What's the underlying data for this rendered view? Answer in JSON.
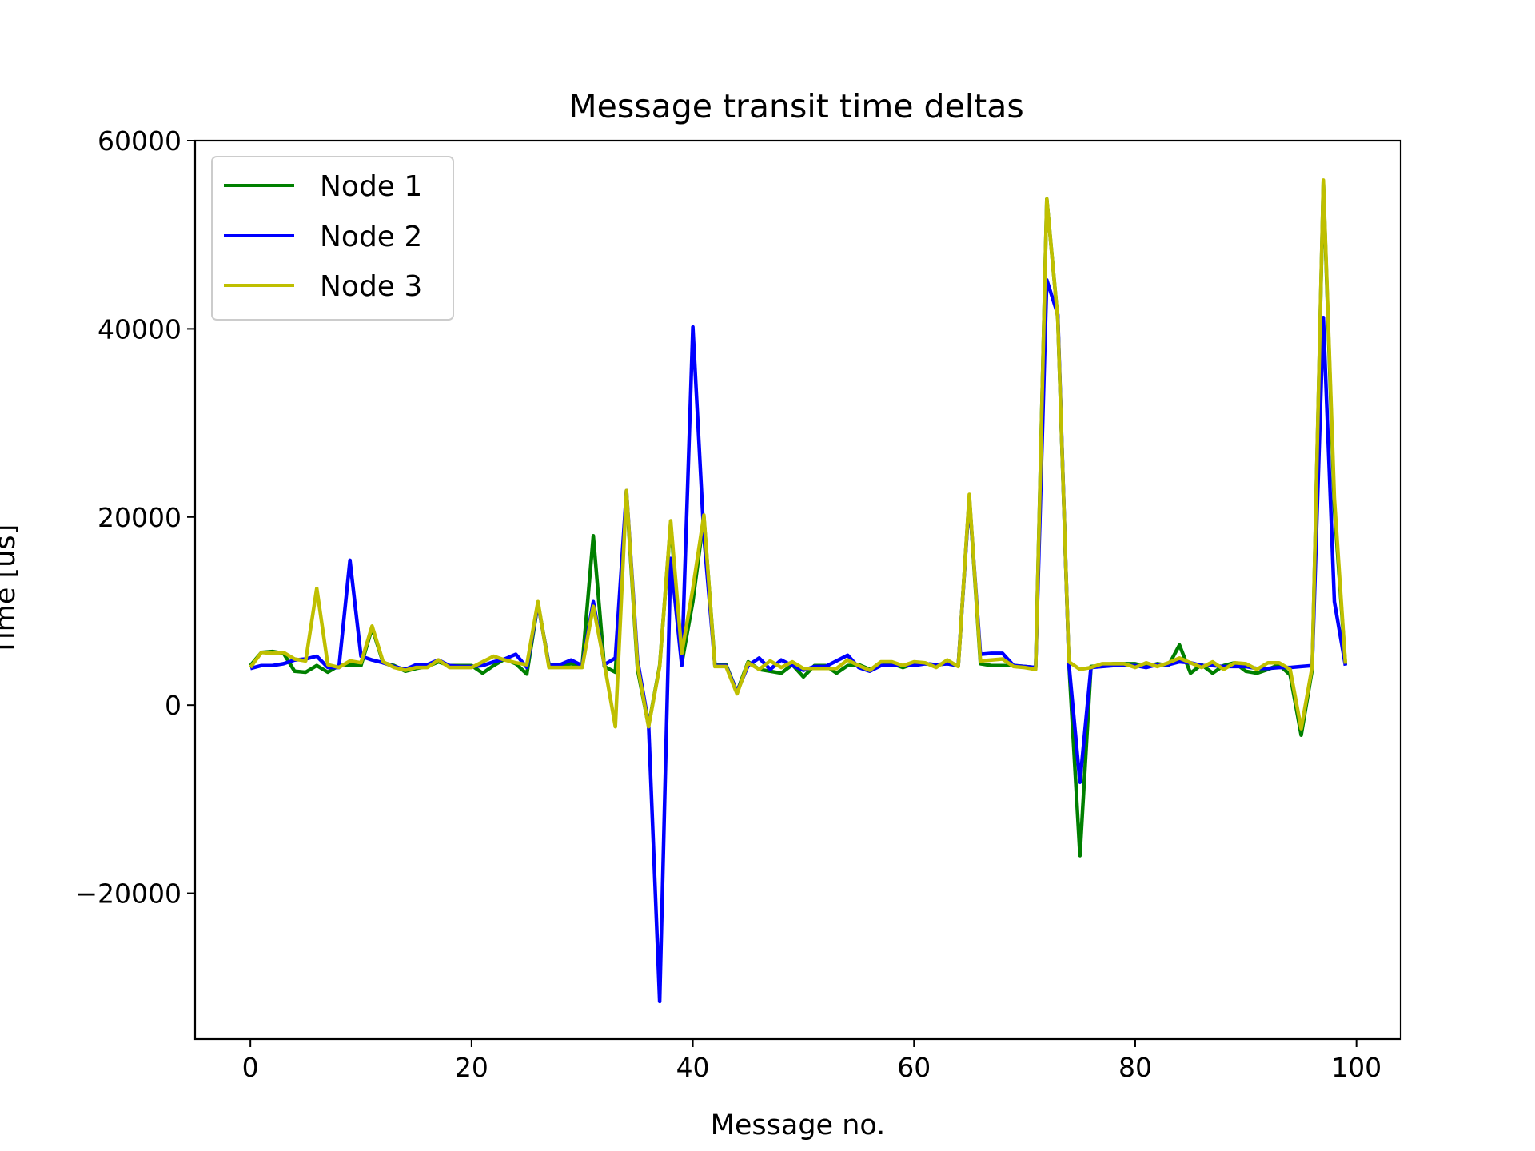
{
  "chart_data": {
    "type": "line",
    "title": "Message transit time deltas",
    "xlabel": "Message no.",
    "ylabel": "Time [us]",
    "xlim": [
      -5,
      104
    ],
    "ylim": [
      -35500,
      60000
    ],
    "xticks": [
      0,
      20,
      40,
      60,
      80,
      100
    ],
    "yticks": [
      -20000,
      0,
      20000,
      40000,
      60000
    ],
    "ytick_labels": [
      "−20000",
      "0",
      "20000",
      "40000",
      "60000"
    ],
    "grid": false,
    "legend_position": "top-left",
    "x": [
      0,
      1,
      2,
      3,
      4,
      5,
      6,
      7,
      8,
      9,
      10,
      11,
      12,
      13,
      14,
      15,
      16,
      17,
      18,
      19,
      20,
      21,
      22,
      23,
      24,
      25,
      26,
      27,
      28,
      29,
      30,
      31,
      32,
      33,
      34,
      35,
      36,
      37,
      38,
      39,
      40,
      41,
      42,
      43,
      44,
      45,
      46,
      47,
      48,
      49,
      50,
      51,
      52,
      53,
      54,
      55,
      56,
      57,
      58,
      59,
      60,
      61,
      62,
      63,
      64,
      65,
      66,
      67,
      68,
      69,
      70,
      71,
      72,
      73,
      74,
      75,
      76,
      77,
      78,
      79,
      80,
      81,
      82,
      83,
      84,
      85,
      86,
      87,
      88,
      89,
      90,
      91,
      92,
      93,
      94,
      95,
      96,
      97,
      98,
      99
    ],
    "series": [
      {
        "name": "Node 1",
        "color": "#008000",
        "values": [
          4200,
          5600,
          5700,
          5500,
          3600,
          3500,
          4200,
          3500,
          4200,
          4300,
          4200,
          8200,
          4500,
          4200,
          3600,
          3900,
          4100,
          4600,
          4200,
          4200,
          4200,
          3400,
          4200,
          4900,
          4400,
          3300,
          10800,
          4300,
          4200,
          4400,
          4200,
          18000,
          4100,
          3500,
          22500,
          3800,
          -2200,
          4200,
          19400,
          4400,
          11000,
          20000,
          4300,
          4300,
          1400,
          4600,
          3800,
          3600,
          3400,
          4300,
          3000,
          4200,
          4200,
          3400,
          4200,
          4300,
          3800,
          4200,
          4400,
          4000,
          4400,
          4400,
          4300,
          4400,
          4200,
          22200,
          4400,
          4200,
          4200,
          4200,
          4100,
          4000,
          53800,
          41000,
          4400,
          -16000,
          4100,
          4200,
          4400,
          4400,
          4400,
          4100,
          4400,
          4200,
          6400,
          3400,
          4300,
          3400,
          4200,
          4500,
          3600,
          3400,
          3800,
          4300,
          3200,
          -3200,
          3800,
          55600,
          21000,
          4300
        ]
      },
      {
        "name": "Node 2",
        "color": "#0000ff",
        "values": [
          3900,
          4200,
          4200,
          4400,
          4800,
          4900,
          5200,
          4000,
          4000,
          15400,
          5200,
          4800,
          4500,
          4100,
          3800,
          4300,
          4300,
          4800,
          4200,
          4100,
          4100,
          4200,
          4600,
          4900,
          5400,
          4000,
          10800,
          4200,
          4300,
          4800,
          4200,
          11000,
          4300,
          5000,
          22800,
          4800,
          -2000,
          -31500,
          15600,
          4200,
          40200,
          18000,
          4200,
          4200,
          1400,
          4200,
          5000,
          3800,
          4800,
          4200,
          3700,
          4100,
          4100,
          4700,
          5300,
          4000,
          3600,
          4200,
          4200,
          4200,
          4200,
          4400,
          4300,
          4400,
          4200,
          22000,
          5400,
          5500,
          5500,
          4200,
          4100,
          4000,
          45200,
          41500,
          4400,
          -8200,
          4000,
          4100,
          4200,
          4200,
          4200,
          4000,
          4300,
          4300,
          4600,
          4500,
          4200,
          4200,
          4100,
          4100,
          4100,
          3900,
          3900,
          4000,
          4000,
          4100,
          4200,
          41200,
          11000,
          4200
        ]
      },
      {
        "name": "Node 3",
        "color": "#bfbf00",
        "values": [
          4000,
          5600,
          5500,
          5600,
          4900,
          4700,
          12400,
          4300,
          4000,
          4700,
          4500,
          8400,
          4600,
          4000,
          3700,
          4000,
          4000,
          4800,
          4000,
          4000,
          4000,
          4600,
          5200,
          4800,
          4500,
          4300,
          11000,
          4000,
          4000,
          4000,
          4000,
          10500,
          4400,
          -2300,
          22800,
          4200,
          -2300,
          4100,
          19600,
          5500,
          12400,
          20200,
          4100,
          4100,
          1200,
          4500,
          3800,
          4700,
          4000,
          4600,
          3900,
          3900,
          3900,
          3900,
          4800,
          4200,
          3700,
          4600,
          4600,
          4200,
          4600,
          4500,
          4000,
          4800,
          4100,
          22400,
          4700,
          4800,
          4900,
          4100,
          4000,
          3800,
          53800,
          41000,
          4600,
          3800,
          4000,
          4400,
          4400,
          4400,
          4000,
          4500,
          4100,
          4500,
          5000,
          4500,
          4000,
          4600,
          3800,
          4500,
          4400,
          3800,
          4500,
          4500,
          3800,
          -2500,
          4100,
          55800,
          22000,
          4400
        ]
      }
    ]
  }
}
